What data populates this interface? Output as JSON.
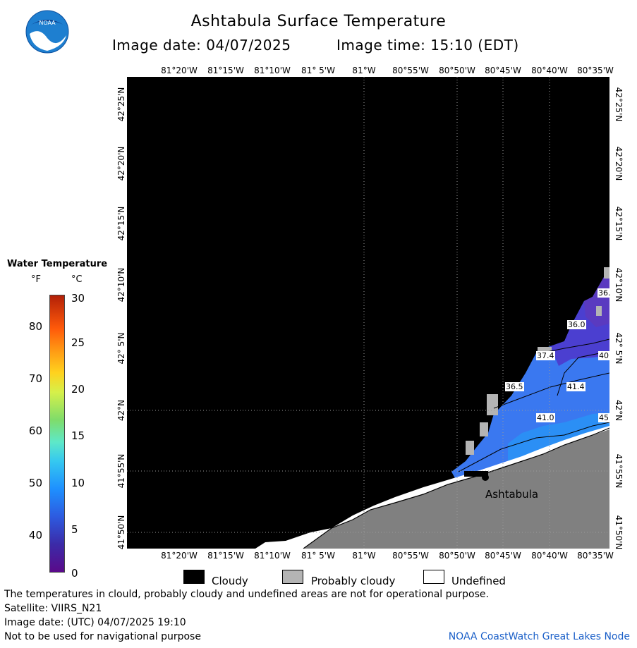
{
  "header": {
    "title": "Ashtabula Surface Temperature",
    "image_date": "Image date: 04/07/2025",
    "image_time": "Image time: 15:10 (EDT)",
    "logo_text": "NOAA"
  },
  "axes": {
    "lon_labels": [
      "81°20'W",
      "81°15'W",
      "81°10'W",
      "81° 5'W",
      "81°W",
      "80°55'W",
      "80°50'W",
      "80°45'W",
      "80°40'W",
      "80°35'W"
    ],
    "lat_labels": [
      "42°25'N",
      "42°20'N",
      "42°15'N",
      "42°10'N",
      "42° 5'N",
      "42°N",
      "41°55'N",
      "41°50'N"
    ]
  },
  "map": {
    "city": "Ashtabula",
    "contour_labels": [
      "36.",
      "36.0",
      "37.4",
      "40",
      "36.5",
      "41.4",
      "41.0",
      "45"
    ],
    "colors": {
      "cloudy": "#000000",
      "probably_cloudy": "#b4b4b4",
      "land": "#808080",
      "undefined": "#ffffff"
    }
  },
  "legend": {
    "title": "Water Temperature",
    "f_unit": "°F",
    "c_unit": "°C",
    "f_ticks": [
      "80",
      "70",
      "60",
      "50",
      "40"
    ],
    "c_ticks": [
      "30",
      "25",
      "20",
      "15",
      "10",
      "5",
      "0"
    ]
  },
  "key": {
    "cloudy": "Cloudy",
    "probably_cloudy": "Probably cloudy",
    "undefined": "Undefined"
  },
  "footer": {
    "note": "The temperatures in clould, probably cloudy and undefined areas are not for operational purpose.",
    "satellite": "Satellite: VIIRS_N21",
    "utc_date": "Image date: (UTC) 04/07/2025  19:10",
    "nav_warning": "Not to be used for navigational purpose",
    "credit": "NOAA CoastWatch Great Lakes Node"
  }
}
